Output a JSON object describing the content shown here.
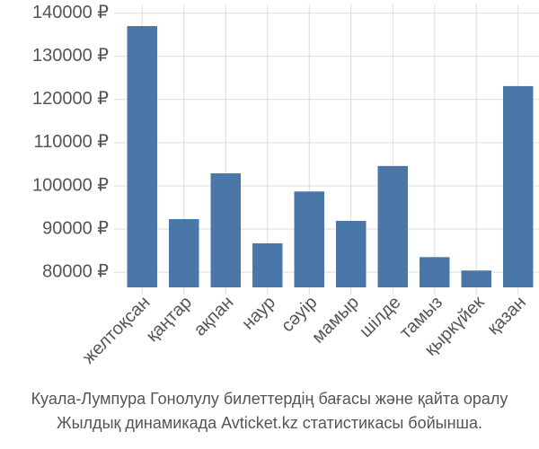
{
  "chart_data": {
    "type": "bar",
    "categories": [
      "желтоқсан",
      "қаңтар",
      "ақпан",
      "наур",
      "сәуір",
      "мамыр",
      "шілде",
      "тамыз",
      "қыркүйек",
      "қазан"
    ],
    "values": [
      137000,
      92300,
      102900,
      86700,
      98700,
      91900,
      104600,
      83500,
      80400,
      123100
    ],
    "color": "#4a76a8",
    "ylim": [
      76500,
      142000
    ],
    "yticks": [
      {
        "value": 80000,
        "label": "80000 ₽"
      },
      {
        "value": 90000,
        "label": "90000 ₽"
      },
      {
        "value": 100000,
        "label": "100000 ₽"
      },
      {
        "value": 110000,
        "label": "110000 ₽"
      },
      {
        "value": 120000,
        "label": "120000 ₽"
      },
      {
        "value": 130000,
        "label": "130000 ₽"
      },
      {
        "value": 140000,
        "label": "140000 ₽"
      }
    ],
    "grid": true,
    "caption": [
      "Куала-Лумпура Гонолулу билеттердің бағасы және қайта оралу",
      "Жылдық динамикада Avticket.kz статистикасы бойынша."
    ]
  }
}
